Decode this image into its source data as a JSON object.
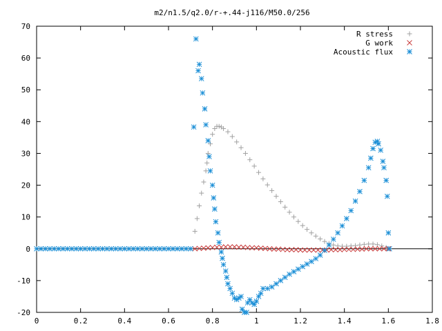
{
  "chart_data": {
    "type": "scatter",
    "title": "m2/n1.5/q2.0/r-+.44-j116/M50.0/256",
    "xlabel": "",
    "ylabel": "",
    "xlim": [
      0,
      1.8
    ],
    "ylim": [
      -20,
      70
    ],
    "xticks": [
      0,
      0.2,
      0.4,
      0.6,
      0.8,
      1,
      1.2,
      1.4,
      1.6,
      1.8
    ],
    "xtick_labels": [
      "0",
      "0.2",
      "0.4",
      "0.6",
      "0.8",
      "1",
      "1.2",
      "1.4",
      "1.6",
      "1.8"
    ],
    "yticks": [
      -20,
      -10,
      0,
      10,
      20,
      30,
      40,
      50,
      60,
      70
    ],
    "ytick_labels": [
      "-20",
      "-10",
      "0",
      "10",
      "20",
      "30",
      "40",
      "50",
      "60",
      "70"
    ],
    "grid": false,
    "legend_position": "top-right",
    "series": [
      {
        "name": "R stress",
        "marker": "plus",
        "color": "#a0a0a0",
        "points": [
          [
            0.72,
            5.5
          ],
          [
            0.73,
            9.5
          ],
          [
            0.74,
            13.5
          ],
          [
            0.75,
            17.5
          ],
          [
            0.76,
            21
          ],
          [
            0.77,
            24.5
          ],
          [
            0.775,
            27
          ],
          [
            0.78,
            30
          ],
          [
            0.79,
            33
          ],
          [
            0.8,
            36
          ],
          [
            0.81,
            37.8
          ],
          [
            0.82,
            38.5
          ],
          [
            0.83,
            38.5
          ],
          [
            0.84,
            38.3
          ],
          [
            0.85,
            37.8
          ],
          [
            0.87,
            36.8
          ],
          [
            0.89,
            35.3
          ],
          [
            0.91,
            33.6
          ],
          [
            0.93,
            31.8
          ],
          [
            0.95,
            30
          ],
          [
            0.97,
            28
          ],
          [
            0.99,
            26
          ],
          [
            1.01,
            24
          ],
          [
            1.03,
            22
          ],
          [
            1.05,
            20.1
          ],
          [
            1.07,
            18.3
          ],
          [
            1.09,
            16.5
          ],
          [
            1.11,
            14.8
          ],
          [
            1.13,
            13.1
          ],
          [
            1.15,
            11.5
          ],
          [
            1.17,
            10
          ],
          [
            1.19,
            8.6
          ],
          [
            1.21,
            7.3
          ],
          [
            1.23,
            6.1
          ],
          [
            1.25,
            5
          ],
          [
            1.27,
            4
          ],
          [
            1.29,
            3.1
          ],
          [
            1.31,
            2.3
          ],
          [
            1.33,
            1.7
          ],
          [
            1.35,
            1.2
          ],
          [
            1.37,
            0.9
          ],
          [
            1.39,
            0.8
          ],
          [
            1.41,
            0.8
          ],
          [
            1.43,
            0.9
          ],
          [
            1.45,
            1
          ],
          [
            1.47,
            1.2
          ],
          [
            1.49,
            1.4
          ],
          [
            1.51,
            1.5
          ],
          [
            1.53,
            1.5
          ],
          [
            1.55,
            1.3
          ],
          [
            1.57,
            0.9
          ],
          [
            1.59,
            0.4
          ],
          [
            1.6,
            0.1
          ]
        ]
      },
      {
        "name": "G work",
        "marker": "cross",
        "color": "#c83c3c",
        "points": [
          [
            0.72,
            0
          ],
          [
            0.74,
            0.1
          ],
          [
            0.76,
            0.2
          ],
          [
            0.78,
            0.3
          ],
          [
            0.8,
            0.4
          ],
          [
            0.82,
            0.5
          ],
          [
            0.84,
            0.5
          ],
          [
            0.86,
            0.6
          ],
          [
            0.88,
            0.6
          ],
          [
            0.9,
            0.6
          ],
          [
            0.92,
            0.5
          ],
          [
            0.94,
            0.5
          ],
          [
            0.96,
            0.4
          ],
          [
            0.98,
            0.3
          ],
          [
            1.0,
            0.3
          ],
          [
            1.02,
            0.2
          ],
          [
            1.04,
            0.1
          ],
          [
            1.06,
            0
          ],
          [
            1.08,
            -0.1
          ],
          [
            1.1,
            -0.1
          ],
          [
            1.12,
            -0.2
          ],
          [
            1.14,
            -0.3
          ],
          [
            1.16,
            -0.3
          ],
          [
            1.18,
            -0.3
          ],
          [
            1.2,
            -0.4
          ],
          [
            1.22,
            -0.4
          ],
          [
            1.24,
            -0.4
          ],
          [
            1.26,
            -0.4
          ],
          [
            1.28,
            -0.4
          ],
          [
            1.3,
            -0.4
          ],
          [
            1.32,
            -0.4
          ],
          [
            1.34,
            -0.3
          ],
          [
            1.36,
            -0.3
          ],
          [
            1.38,
            -0.3
          ],
          [
            1.4,
            -0.2
          ],
          [
            1.42,
            -0.2
          ],
          [
            1.44,
            -0.2
          ],
          [
            1.46,
            -0.1
          ],
          [
            1.48,
            -0.1
          ],
          [
            1.5,
            0
          ],
          [
            1.52,
            0
          ],
          [
            1.54,
            0
          ],
          [
            1.56,
            0
          ],
          [
            1.58,
            0
          ],
          [
            1.6,
            0
          ]
        ]
      },
      {
        "name": "Acoustic flux",
        "marker": "star",
        "color": "#1a8ed6",
        "points": [
          [
            0,
            0
          ],
          [
            0.02,
            0
          ],
          [
            0.04,
            0
          ],
          [
            0.06,
            0
          ],
          [
            0.08,
            0
          ],
          [
            0.1,
            0
          ],
          [
            0.12,
            0
          ],
          [
            0.14,
            0
          ],
          [
            0.16,
            0
          ],
          [
            0.18,
            0
          ],
          [
            0.2,
            0
          ],
          [
            0.22,
            0
          ],
          [
            0.24,
            0
          ],
          [
            0.26,
            0
          ],
          [
            0.28,
            0
          ],
          [
            0.3,
            0
          ],
          [
            0.32,
            0
          ],
          [
            0.34,
            0
          ],
          [
            0.36,
            0
          ],
          [
            0.38,
            0
          ],
          [
            0.4,
            0
          ],
          [
            0.42,
            0
          ],
          [
            0.44,
            0
          ],
          [
            0.46,
            0
          ],
          [
            0.48,
            0
          ],
          [
            0.5,
            0
          ],
          [
            0.52,
            0
          ],
          [
            0.54,
            0
          ],
          [
            0.56,
            0
          ],
          [
            0.58,
            0
          ],
          [
            0.6,
            0
          ],
          [
            0.62,
            0
          ],
          [
            0.64,
            0
          ],
          [
            0.66,
            0
          ],
          [
            0.68,
            0
          ],
          [
            0.7,
            0
          ],
          [
            0.715,
            38.3
          ],
          [
            0.725,
            66
          ],
          [
            0.735,
            56
          ],
          [
            0.74,
            58
          ],
          [
            0.75,
            53.5
          ],
          [
            0.755,
            49
          ],
          [
            0.765,
            44
          ],
          [
            0.77,
            39
          ],
          [
            0.78,
            34
          ],
          [
            0.785,
            29
          ],
          [
            0.79,
            24.5
          ],
          [
            0.8,
            20
          ],
          [
            0.805,
            16
          ],
          [
            0.81,
            12.5
          ],
          [
            0.815,
            8.5
          ],
          [
            0.825,
            5
          ],
          [
            0.83,
            2
          ],
          [
            0.84,
            -1
          ],
          [
            0.845,
            -3
          ],
          [
            0.85,
            -5
          ],
          [
            0.86,
            -7
          ],
          [
            0.865,
            -9
          ],
          [
            0.87,
            -11
          ],
          [
            0.88,
            -12.5
          ],
          [
            0.89,
            -14
          ],
          [
            0.9,
            -15.5
          ],
          [
            0.91,
            -16
          ],
          [
            0.92,
            -15.5
          ],
          [
            0.93,
            -15
          ],
          [
            0.935,
            -19
          ],
          [
            0.945,
            -20
          ],
          [
            0.955,
            -20
          ],
          [
            0.96,
            -17
          ],
          [
            0.97,
            -16
          ],
          [
            0.98,
            -17
          ],
          [
            0.99,
            -17.5
          ],
          [
            1.0,
            -16.5
          ],
          [
            1.01,
            -15
          ],
          [
            1.02,
            -14
          ],
          [
            1.03,
            -12.5
          ],
          [
            1.05,
            -12.5
          ],
          [
            1.07,
            -12
          ],
          [
            1.09,
            -11
          ],
          [
            1.11,
            -10
          ],
          [
            1.13,
            -9
          ],
          [
            1.15,
            -8
          ],
          [
            1.17,
            -7.2
          ],
          [
            1.19,
            -6.4
          ],
          [
            1.21,
            -5.6
          ],
          [
            1.23,
            -4.8
          ],
          [
            1.25,
            -4
          ],
          [
            1.27,
            -3.1
          ],
          [
            1.29,
            -2
          ],
          [
            1.31,
            -0.5
          ],
          [
            1.33,
            1.2
          ],
          [
            1.35,
            3
          ],
          [
            1.37,
            5
          ],
          [
            1.39,
            7.2
          ],
          [
            1.41,
            9.5
          ],
          [
            1.43,
            12
          ],
          [
            1.45,
            15
          ],
          [
            1.47,
            18
          ],
          [
            1.49,
            21.5
          ],
          [
            1.51,
            25.5
          ],
          [
            1.52,
            28.5
          ],
          [
            1.53,
            31.5
          ],
          [
            1.54,
            33.5
          ],
          [
            1.55,
            33.8
          ],
          [
            1.555,
            33
          ],
          [
            1.565,
            31
          ],
          [
            1.575,
            27.5
          ],
          [
            1.58,
            25.5
          ],
          [
            1.59,
            21.5
          ],
          [
            1.595,
            16.5
          ],
          [
            1.6,
            5
          ],
          [
            1.605,
            0
          ]
        ]
      }
    ]
  }
}
